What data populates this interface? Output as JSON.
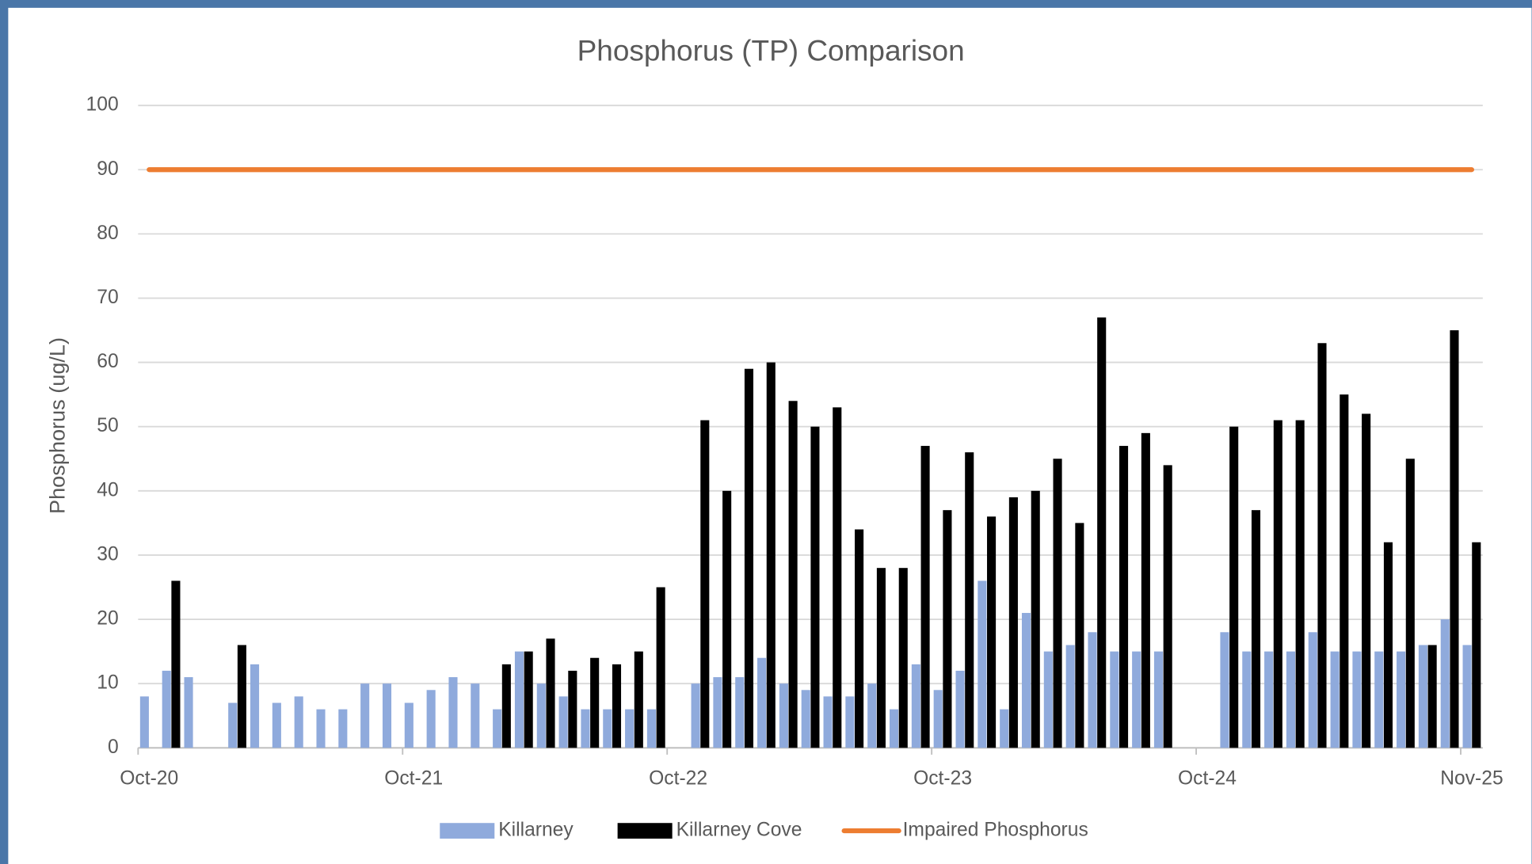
{
  "chart_data": {
    "type": "bar",
    "title": "Phosphorus  (TP) Comparison",
    "y_label": "Phosphorus (ug/L)",
    "categories": [
      "Oct-20",
      null,
      null,
      null,
      null,
      null,
      null,
      null,
      null,
      null,
      null,
      null,
      "Oct-21",
      null,
      null,
      null,
      null,
      null,
      null,
      null,
      null,
      null,
      null,
      null,
      "Oct-22",
      null,
      null,
      null,
      null,
      null,
      null,
      null,
      null,
      null,
      null,
      null,
      "Oct-23",
      null,
      null,
      null,
      null,
      null,
      null,
      null,
      null,
      null,
      null,
      null,
      "Oct-24",
      null,
      null,
      null,
      null,
      null,
      null,
      null,
      null,
      null,
      null,
      null,
      "Nov-25"
    ],
    "series": [
      {
        "name": "Killarney",
        "color": "#8faadc",
        "values": [
          8,
          12,
          11,
          null,
          7,
          13,
          7,
          8,
          6,
          6,
          10,
          10,
          7,
          9,
          11,
          10,
          6,
          15,
          10,
          8,
          6,
          6,
          6,
          6,
          null,
          10,
          11,
          11,
          14,
          10,
          9,
          8,
          8,
          10,
          6,
          13,
          9,
          12,
          26,
          6,
          21,
          15,
          16,
          18,
          15,
          15,
          15,
          null,
          null,
          18,
          15,
          15,
          15,
          18,
          15,
          15,
          15,
          15,
          16,
          20,
          16
        ]
      },
      {
        "name": "Killarney Cove",
        "color": "#000000",
        "values": [
          null,
          26,
          null,
          null,
          16,
          null,
          null,
          null,
          null,
          null,
          null,
          null,
          null,
          null,
          null,
          null,
          13,
          15,
          17,
          12,
          14,
          13,
          15,
          25,
          null,
          51,
          40,
          59,
          60,
          54,
          50,
          53,
          34,
          28,
          28,
          47,
          37,
          46,
          36,
          39,
          40,
          45,
          35,
          67,
          47,
          49,
          44,
          null,
          null,
          50,
          37,
          51,
          51,
          63,
          55,
          52,
          32,
          45,
          16,
          65,
          32
        ]
      },
      {
        "name": "Impaired Phosphorus",
        "color": "#ed7d31",
        "type": "line",
        "values": [
          90,
          90,
          90,
          90,
          90,
          90,
          90,
          90,
          90,
          90,
          90,
          90,
          90,
          90,
          90,
          90,
          90,
          90,
          90,
          90,
          90,
          90,
          90,
          90,
          90,
          90,
          90,
          90,
          90,
          90,
          90,
          90,
          90,
          90,
          90,
          90,
          90,
          90,
          90,
          90,
          90,
          90,
          90,
          90,
          90,
          90,
          90,
          90,
          90,
          90,
          90,
          90,
          90,
          90,
          90,
          90,
          90,
          90,
          90,
          90,
          90
        ]
      }
    ],
    "ylim": [
      0,
      100
    ],
    "yticks": [
      0,
      10,
      20,
      30,
      40,
      50,
      60,
      70,
      80,
      90,
      100
    ],
    "grid": true,
    "legend": "bottom"
  }
}
